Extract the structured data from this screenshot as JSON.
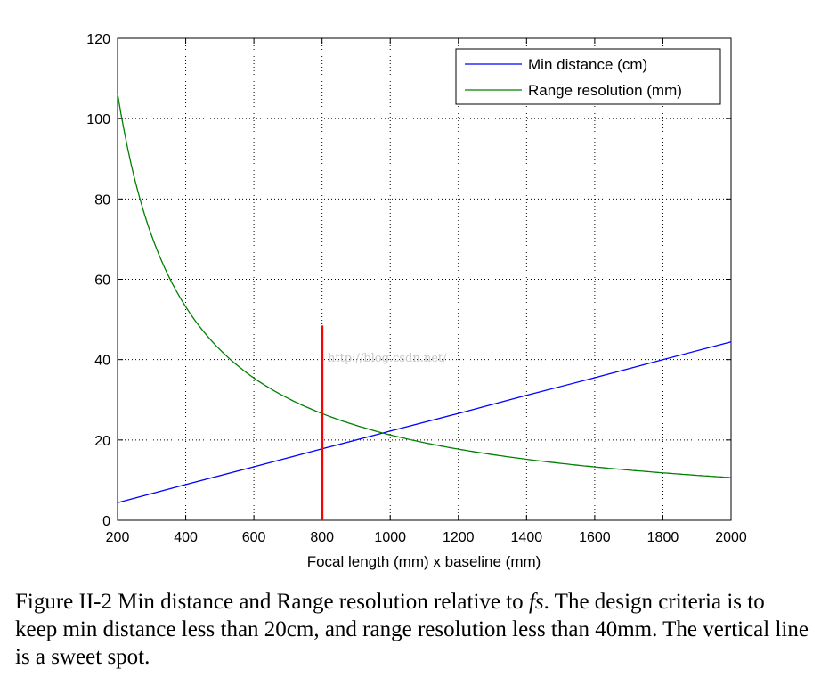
{
  "chart_data": {
    "type": "line",
    "title": "",
    "xlabel": "Focal length (mm) x baseline (mm)",
    "ylabel": "",
    "xlim": [
      200,
      2000
    ],
    "ylim": [
      0,
      120
    ],
    "xticks": [
      200,
      400,
      600,
      800,
      1000,
      1200,
      1400,
      1600,
      1800,
      2000
    ],
    "yticks": [
      0,
      20,
      40,
      60,
      80,
      100,
      120
    ],
    "grid": true,
    "legend_position": "top-right",
    "series": [
      {
        "name": "Min distance (cm)",
        "color": "#0000ff",
        "x": [
          200,
          400,
          600,
          800,
          1000,
          1200,
          1400,
          1600,
          1800,
          2000
        ],
        "y": [
          4.4,
          8.9,
          13.3,
          17.8,
          22.2,
          26.6,
          31.1,
          35.5,
          40.0,
          44.4
        ]
      },
      {
        "name": "Range resolution (mm)",
        "color": "#008000",
        "x": [
          200,
          250,
          300,
          350,
          400,
          500,
          600,
          700,
          800,
          1000,
          1200,
          1400,
          1600,
          1800,
          2000
        ],
        "y": [
          106,
          85,
          71,
          61,
          53,
          42.5,
          35.4,
          30.4,
          26.6,
          21.3,
          17.7,
          15.2,
          13.3,
          11.8,
          10.6
        ]
      }
    ],
    "vertical_marker": {
      "x": 800,
      "y_from": 0,
      "y_to": 48.5,
      "color": "#ff0000"
    },
    "annotations": [
      "http://blog.csdn.net/"
    ]
  },
  "caption": {
    "figure_label": "Figure II-2  Min distance and Range resolution relative to ",
    "emphasis": "fs",
    "rest": ".  The design criteria is to keep min distance less than 20cm, and range resolution less than 40mm.  The vertical line is a sweet spot."
  }
}
